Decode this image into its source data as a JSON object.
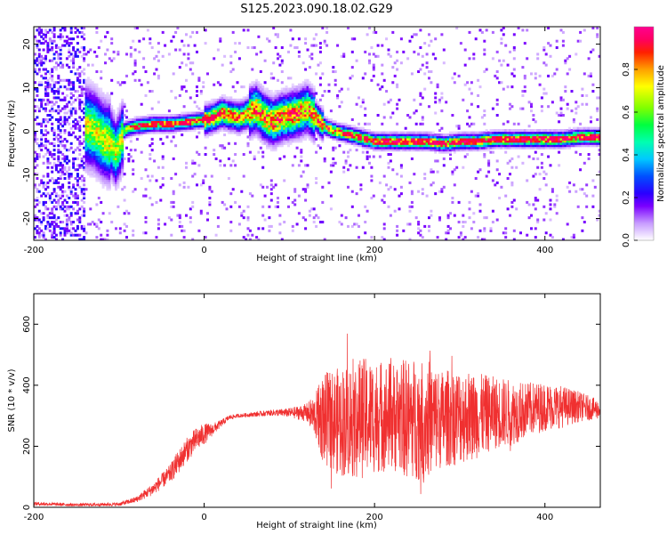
{
  "chart_data": [
    {
      "type": "heatmap",
      "title": "S125.2023.090.18.02.G29",
      "xlabel": "Height of straight line (km)",
      "ylabel": "Frequency (Hz)",
      "xlim": [
        -200,
        465
      ],
      "ylim": [
        -25,
        24
      ],
      "xticks": [
        -200,
        0,
        200,
        400
      ],
      "yticks": [
        -20,
        -10,
        0,
        10,
        20
      ],
      "colorbar": {
        "label": "Normalized spectral amplitude",
        "range": [
          0,
          1
        ],
        "ticks": [
          "0.0",
          "0.2",
          "0.4",
          "0.6",
          "0.8"
        ],
        "colors": [
          "#ffffff",
          "#c79bff",
          "#7a00ff",
          "#2a00ff",
          "#0050ff",
          "#00c8ff",
          "#00ffb0",
          "#00ff40",
          "#80ff00",
          "#ffff00",
          "#ffa000",
          "#ff2000",
          "#ff0060",
          "#ff0090"
        ]
      },
      "ridge": {
        "x": [
          -150,
          -140,
          -130,
          -120,
          -110,
          -105,
          -100,
          -95,
          -90,
          -80,
          -60,
          -40,
          -20,
          0,
          10,
          20,
          30,
          40,
          50,
          60,
          70,
          80,
          90,
          100,
          110,
          120,
          130,
          140,
          150,
          160,
          170,
          180,
          190,
          200,
          220,
          240,
          260,
          280,
          300,
          320,
          340,
          360,
          380,
          400,
          420,
          440,
          465
        ],
        "y": [
          2,
          1,
          0,
          -2,
          -3,
          -5,
          -3,
          0,
          0.5,
          1,
          1.5,
          1.5,
          2,
          2.5,
          3,
          4,
          3.5,
          3,
          4,
          5,
          3,
          2,
          3,
          3.5,
          4,
          5,
          3,
          1,
          0,
          -0.5,
          -1,
          -1.5,
          -2,
          -2.5,
          -2.5,
          -2.5,
          -2.5,
          -3,
          -2.5,
          -2.5,
          -2,
          -2,
          -2,
          -2,
          -2,
          -1.5,
          -1.5
        ]
      }
    },
    {
      "type": "line",
      "xlabel": "Height of straight line (km)",
      "ylabel": "SNR (10 * v/v)",
      "xlim": [
        -200,
        465
      ],
      "ylim": [
        0,
        700
      ],
      "xticks": [
        -200,
        0,
        200,
        400
      ],
      "yticks": [
        0,
        200,
        400,
        600
      ],
      "color": "#f03030",
      "envelope": {
        "x": [
          -200,
          -150,
          -100,
          -80,
          -60,
          -40,
          -30,
          -20,
          -10,
          0,
          10,
          20,
          30,
          40,
          60,
          80,
          100,
          120,
          130,
          140,
          160,
          180,
          200,
          220,
          240,
          260,
          280,
          300,
          320,
          340,
          360,
          380,
          400,
          420,
          440,
          465
        ],
        "center": [
          12,
          8,
          10,
          25,
          60,
          110,
          150,
          190,
          220,
          240,
          255,
          275,
          295,
          300,
          305,
          310,
          310,
          310,
          300,
          290,
          280,
          290,
          300,
          300,
          290,
          290,
          290,
          300,
          300,
          310,
          310,
          320,
          330,
          330,
          330,
          320
        ],
        "amplitude": [
          6,
          5,
          6,
          10,
          20,
          30,
          40,
          40,
          40,
          35,
          20,
          12,
          8,
          6,
          8,
          10,
          15,
          30,
          70,
          150,
          180,
          200,
          190,
          180,
          200,
          200,
          160,
          160,
          140,
          120,
          110,
          90,
          80,
          70,
          50,
          30
        ]
      }
    }
  ]
}
